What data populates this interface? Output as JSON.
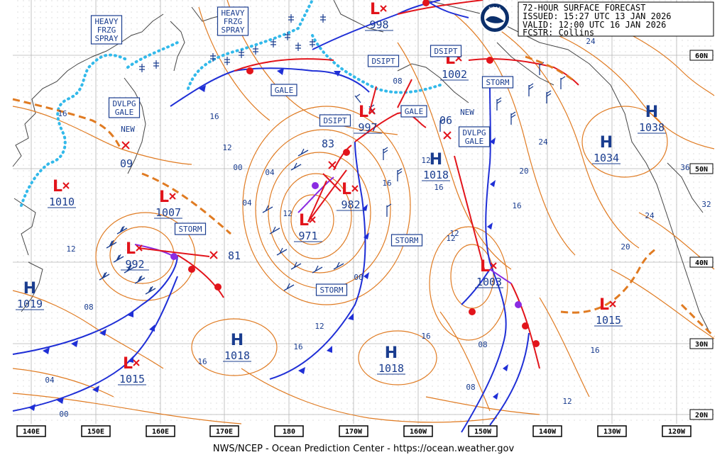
{
  "header": {
    "line1": "72-HOUR SURFACE FORECAST",
    "line2": "ISSUED: 15:27 UTC 13 JAN 2026",
    "line3": "VALID:  12:00 UTC 16 JAN 2026",
    "line4": "FCSTR:  Collins"
  },
  "footer": "NWS/NCEP - Ocean Prediction Center - https://ocean.weather.gov",
  "logo_text": "NOAA",
  "longitude_ticks": [
    "140E",
    "150E",
    "160E",
    "170E",
    "180",
    "170W",
    "160W",
    "150W",
    "140W",
    "130W",
    "120W"
  ],
  "latitude_ticks": [
    "60N",
    "50N",
    "40N",
    "30N",
    "20N"
  ],
  "pressure_centers": [
    {
      "type": "H",
      "value": "1019"
    },
    {
      "type": "H",
      "value": "1018"
    },
    {
      "type": "H",
      "value": "1018"
    },
    {
      "type": "H",
      "value": "1018"
    },
    {
      "type": "H",
      "value": "1034"
    },
    {
      "type": "H",
      "value": "1038"
    },
    {
      "type": "L",
      "value": "1010"
    },
    {
      "type": "L",
      "value": "1007"
    },
    {
      "type": "L",
      "value": "992"
    },
    {
      "type": "L",
      "value": "1015"
    },
    {
      "type": "L",
      "value": "971"
    },
    {
      "type": "L",
      "value": "982"
    },
    {
      "type": "L",
      "value": "997"
    },
    {
      "type": "L",
      "value": "998"
    },
    {
      "type": "L",
      "value": "1002"
    },
    {
      "type": "L",
      "value": "1003"
    },
    {
      "type": "L",
      "value": "1015"
    }
  ],
  "new_lows": [
    {
      "tag": "NEW",
      "value": "09"
    },
    {
      "tag": "NEW",
      "value": "06"
    },
    {
      "tag": "",
      "value": "81"
    },
    {
      "tag": "",
      "value": "83"
    }
  ],
  "warnings": [
    "HEAVY",
    "FRZG",
    "SPRAY",
    "HEAVY",
    "FRZG",
    "SPRAY",
    "DVLPG",
    "GALE",
    "GALE",
    "GALE",
    "STORM",
    "DVLPG",
    "GALE",
    "STORM",
    "STORM",
    "STORM",
    "DSIPT",
    "DSIPT",
    "DSIPT"
  ],
  "isobar_labels": [
    "16",
    "12",
    "08",
    "04",
    "00",
    "16",
    "12",
    "16",
    "12",
    "16",
    "12",
    "16",
    "16",
    "12",
    "08",
    "04",
    "00",
    "04",
    "08",
    "00",
    "24",
    "20",
    "24",
    "16",
    "36",
    "32",
    "24",
    "20",
    "16",
    "12",
    "08",
    "12",
    "16",
    "12"
  ],
  "colors": {
    "isobar": "#e07b22",
    "cold_front": "#1f2fd6",
    "warm_front": "#e2141b",
    "occluded": "#8a2be2",
    "ice_edge": "#32b9ea",
    "text": "#1a3d8f",
    "grid": "#b5b5b5"
  }
}
